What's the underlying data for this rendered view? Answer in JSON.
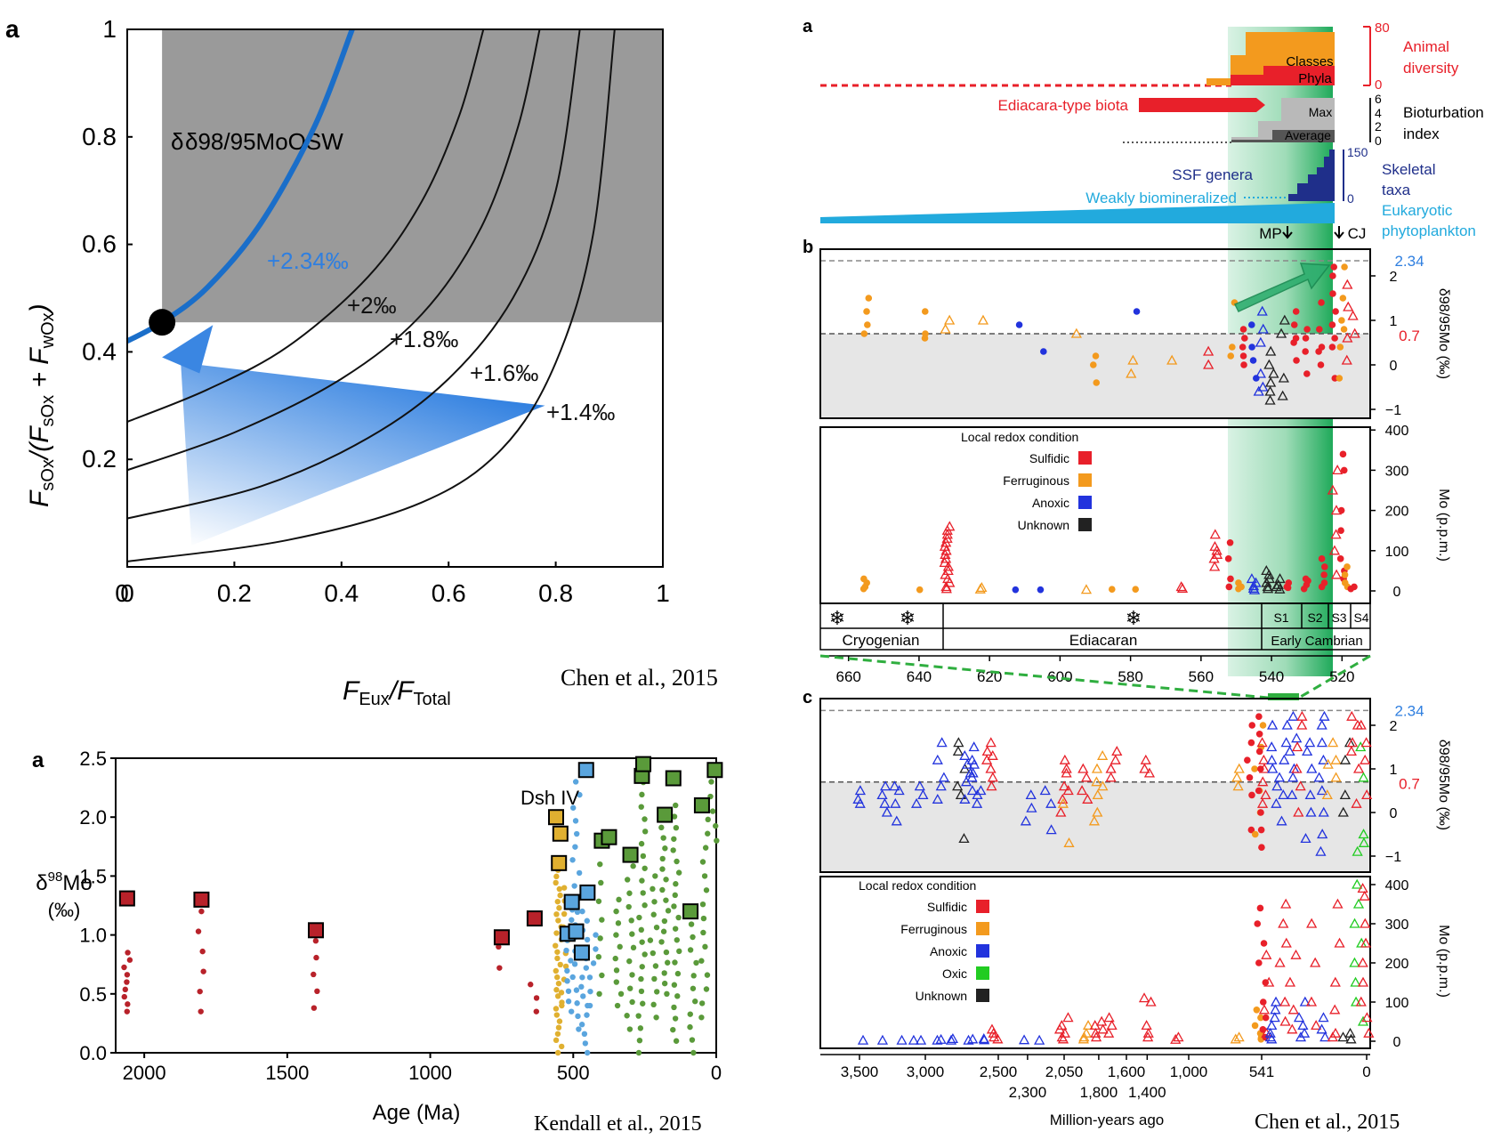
{
  "citations": {
    "chen_top": "Chen et al., 2015",
    "kendall": "Kendall et al., 2015",
    "chen_right": "Chen et al., 2015"
  },
  "colors": {
    "red": "#e8202a",
    "orange": "#f39a1e",
    "blue": "#2233dd",
    "black": "#222222",
    "green": "#22cc22",
    "teal": "#1a9e5c",
    "cyan": "#22aadd",
    "navy": "#1f2f8a",
    "gold": "#e0b030",
    "lightblue": "#5aa5de",
    "dgreen": "#5a9a3a",
    "darkred": "#b8222a",
    "model_blue": "#1a6ec9",
    "shade": "#9a9a9a"
  },
  "chart_data": [
    {
      "id": "model",
      "type": "line",
      "panel_label": "a",
      "xlabel": "F_Eux/F_Total",
      "ylabel": "F_sOx/(F_sOx + F_wOx)",
      "xlim": [
        0,
        1
      ],
      "ylim": [
        0,
        1
      ],
      "xticks": [
        "0",
        "0.2",
        "0.4",
        "0.6",
        "0.8",
        "1"
      ],
      "yticks": [
        "0.2",
        "0.4",
        "0.6",
        "0.8",
        "1"
      ],
      "shaded_region": {
        "x_min": 0.065,
        "y_min": 0.455,
        "label": "δ98/95MoOSW"
      },
      "point": {
        "x": 0.065,
        "y": 0.455
      },
      "series": [
        {
          "label": "+2.34‰",
          "highlight": true,
          "points": [
            [
              0,
              0.42
            ],
            [
              0.065,
              0.455
            ],
            [
              0.15,
              0.52
            ],
            [
              0.25,
              0.64
            ],
            [
              0.35,
              0.82
            ],
            [
              0.42,
              1.0
            ]
          ]
        },
        {
          "label": "+2‰",
          "points": [
            [
              0,
              0.27
            ],
            [
              0.15,
              0.33
            ],
            [
              0.3,
              0.41
            ],
            [
              0.45,
              0.54
            ],
            [
              0.55,
              0.68
            ],
            [
              0.62,
              0.84
            ],
            [
              0.665,
              1.0
            ]
          ]
        },
        {
          "label": "+1.8‰",
          "points": [
            [
              0,
              0.18
            ],
            [
              0.2,
              0.25
            ],
            [
              0.4,
              0.35
            ],
            [
              0.55,
              0.47
            ],
            [
              0.66,
              0.63
            ],
            [
              0.73,
              0.82
            ],
            [
              0.77,
              1.0
            ]
          ]
        },
        {
          "label": "+1.6‰",
          "points": [
            [
              0,
              0.09
            ],
            [
              0.25,
              0.15
            ],
            [
              0.45,
              0.24
            ],
            [
              0.6,
              0.35
            ],
            [
              0.72,
              0.5
            ],
            [
              0.8,
              0.7
            ],
            [
              0.845,
              1.0
            ]
          ]
        },
        {
          "label": "+1.4‰",
          "points": [
            [
              0,
              0.01
            ],
            [
              0.3,
              0.05
            ],
            [
              0.55,
              0.12
            ],
            [
              0.7,
              0.22
            ],
            [
              0.8,
              0.38
            ],
            [
              0.87,
              0.62
            ],
            [
              0.91,
              1.0
            ]
          ]
        }
      ]
    },
    {
      "id": "kendall",
      "type": "scatter",
      "panel_label": "a",
      "xlabel": "Age (Ma)",
      "ylabel": "δ98Mo",
      "yunit": "(‰)",
      "xlim": [
        2100,
        0
      ],
      "ylim": [
        0,
        2.5
      ],
      "xticks": [
        "2000",
        "1500",
        "1000",
        "500",
        "0"
      ],
      "yticks": [
        "0.0",
        "0.5",
        "1.0",
        "1.5",
        "2.0",
        "2.5"
      ],
      "annotation": "Dsh IV",
      "squares": [
        {
          "x": 2060,
          "y": 1.31,
          "c": "darkred"
        },
        {
          "x": 1800,
          "y": 1.3,
          "c": "darkred"
        },
        {
          "x": 1400,
          "y": 1.04,
          "c": "darkred"
        },
        {
          "x": 750,
          "y": 0.98,
          "c": "darkred"
        },
        {
          "x": 635,
          "y": 1.14,
          "c": "darkred"
        },
        {
          "x": 560,
          "y": 2.0,
          "c": "gold"
        },
        {
          "x": 545,
          "y": 1.86,
          "c": "gold"
        },
        {
          "x": 550,
          "y": 1.61,
          "c": "gold"
        },
        {
          "x": 520,
          "y": 1.01,
          "c": "lightblue"
        },
        {
          "x": 505,
          "y": 1.28,
          "c": "lightblue"
        },
        {
          "x": 490,
          "y": 1.03,
          "c": "lightblue"
        },
        {
          "x": 470,
          "y": 0.85,
          "c": "lightblue"
        },
        {
          "x": 450,
          "y": 1.36,
          "c": "lightblue"
        },
        {
          "x": 455,
          "y": 2.4,
          "c": "lightblue"
        },
        {
          "x": 400,
          "y": 1.8,
          "c": "dgreen"
        },
        {
          "x": 375,
          "y": 1.83,
          "c": "dgreen"
        },
        {
          "x": 300,
          "y": 1.68,
          "c": "dgreen"
        },
        {
          "x": 260,
          "y": 2.35,
          "c": "dgreen"
        },
        {
          "x": 255,
          "y": 2.45,
          "c": "dgreen"
        },
        {
          "x": 150,
          "y": 2.33,
          "c": "dgreen"
        },
        {
          "x": 180,
          "y": 2.02,
          "c": "dgreen"
        },
        {
          "x": 90,
          "y": 1.2,
          "c": "dgreen"
        },
        {
          "x": 50,
          "y": 2.1,
          "c": "dgreen"
        },
        {
          "x": 5,
          "y": 2.4,
          "c": "dgreen"
        }
      ],
      "point_columns": [
        {
          "x": 2060,
          "ymin": 0.35,
          "ymax": 0.85,
          "n": 9,
          "c": "darkred"
        },
        {
          "x": 1800,
          "ymin": 0.35,
          "ymax": 1.2,
          "n": 6,
          "c": "darkred"
        },
        {
          "x": 1400,
          "ymin": 0.38,
          "ymax": 0.95,
          "n": 5,
          "c": "darkred"
        },
        {
          "x": 750,
          "ymin": 0.72,
          "ymax": 0.9,
          "n": 2,
          "c": "darkred"
        },
        {
          "x": 640,
          "ymin": 0.35,
          "ymax": 0.58,
          "n": 3,
          "c": "darkred"
        },
        {
          "x": 552,
          "ymin": 0.0,
          "ymax": 1.55,
          "n": 30,
          "c": "gold"
        },
        {
          "x": 530,
          "ymin": 0.4,
          "ymax": 1.4,
          "n": 10,
          "c": "gold"
        },
        {
          "x": 515,
          "ymin": 0.35,
          "ymax": 1.3,
          "n": 12,
          "c": "lightblue"
        },
        {
          "x": 490,
          "ymin": 0.2,
          "ymax": 2.3,
          "n": 20,
          "c": "lightblue"
        },
        {
          "x": 460,
          "ymin": 0.0,
          "ymax": 1.2,
          "n": 16,
          "c": "lightblue"
        },
        {
          "x": 430,
          "ymin": 0.4,
          "ymax": 1.0,
          "n": 6,
          "c": "lightblue"
        },
        {
          "x": 400,
          "ymin": 0.5,
          "ymax": 1.6,
          "n": 8,
          "c": "dgreen"
        },
        {
          "x": 340,
          "ymin": 0.4,
          "ymax": 1.3,
          "n": 10,
          "c": "dgreen"
        },
        {
          "x": 300,
          "ymin": 0.2,
          "ymax": 1.7,
          "n": 14,
          "c": "dgreen"
        },
        {
          "x": 260,
          "ymin": 0.0,
          "ymax": 2.4,
          "n": 24,
          "c": "dgreen"
        },
        {
          "x": 220,
          "ymin": 0.3,
          "ymax": 1.5,
          "n": 12,
          "c": "dgreen"
        },
        {
          "x": 180,
          "ymin": 0.5,
          "ymax": 2.0,
          "n": 18,
          "c": "dgreen"
        },
        {
          "x": 140,
          "ymin": 0.1,
          "ymax": 2.1,
          "n": 22,
          "c": "dgreen"
        },
        {
          "x": 80,
          "ymin": 0.0,
          "ymax": 1.2,
          "n": 12,
          "c": "dgreen"
        },
        {
          "x": 40,
          "ymin": 0.3,
          "ymax": 2.1,
          "n": 16,
          "c": "dgreen"
        },
        {
          "x": 10,
          "ymin": 1.8,
          "ymax": 2.3,
          "n": 5,
          "c": "dgreen"
        }
      ]
    }
  ],
  "right_figure": {
    "panel_a": {
      "label": "a",
      "animal_diversity": [
        "Animal",
        "diversity"
      ],
      "ad_ticks": [
        "80",
        "0"
      ],
      "classes": "Classes",
      "phyla": "Phyla",
      "ediacara": "Ediacara-type biota",
      "bioturbation": [
        "Bioturbation",
        "index"
      ],
      "bi_ticks": [
        "6",
        "4",
        "2",
        "0"
      ],
      "max": "Max",
      "average": "Average",
      "ssf": "SSF genera",
      "ssf_ticks": [
        "150",
        "0"
      ],
      "skeletal": [
        "Skeletal",
        "taxa"
      ],
      "weakly": "Weakly biomineralized",
      "eukaryotic": [
        "Eukaryotic",
        "phytoplankton"
      ],
      "mp": "MP",
      "cj": "CJ"
    },
    "panel_b": {
      "label": "b",
      "ylabel_mo98": "δ98/95Mo (‰)",
      "ylabel_mo": "Mo (p.p.m.)",
      "ref_high": "2.34",
      "ref_low": "0.7",
      "d_ticks": [
        "2",
        "1",
        "0",
        "−1"
      ],
      "mo_ticks": [
        "400",
        "300",
        "200",
        "100",
        "0"
      ],
      "legend_title": "Local redox condition",
      "legend": [
        {
          "label": "Sulfidic",
          "c": "red"
        },
        {
          "label": "Ferruginous",
          "c": "orange"
        },
        {
          "label": "Anoxic",
          "c": "blue"
        },
        {
          "label": "Unknown",
          "c": "black"
        }
      ],
      "periods": [
        "Cryogenian",
        "Ediacaran",
        "Early Cambrian"
      ],
      "stages": [
        "S1",
        "S2",
        "S3",
        "S4"
      ],
      "xticks": [
        "660",
        "640",
        "620",
        "600",
        "580",
        "560",
        "540",
        "520"
      ]
    },
    "panel_c": {
      "label": "c",
      "ref_high": "2.34",
      "ref_low": "0.7",
      "d_ticks": [
        "2",
        "1",
        "0",
        "−1"
      ],
      "mo_ticks": [
        "400",
        "300",
        "200",
        "100",
        "0"
      ],
      "ylabel_mo98": "δ98/95Mo (‰)",
      "ylabel_mo": "Mo (p.p.m.)",
      "legend_title": "Local redox condition",
      "legend": [
        {
          "label": "Sulfidic",
          "c": "red"
        },
        {
          "label": "Ferruginous",
          "c": "orange"
        },
        {
          "label": "Anoxic",
          "c": "blue"
        },
        {
          "label": "Oxic",
          "c": "green"
        },
        {
          "label": "Unknown",
          "c": "black"
        }
      ],
      "xticks_top": [
        "3,500",
        "3,000",
        "2,500",
        "2,050",
        "1,600",
        "1,000",
        "541",
        "0"
      ],
      "xticks_bottom": [
        "2,300",
        "1,800",
        "1,400"
      ],
      "xlabel": "Million-years ago"
    }
  }
}
